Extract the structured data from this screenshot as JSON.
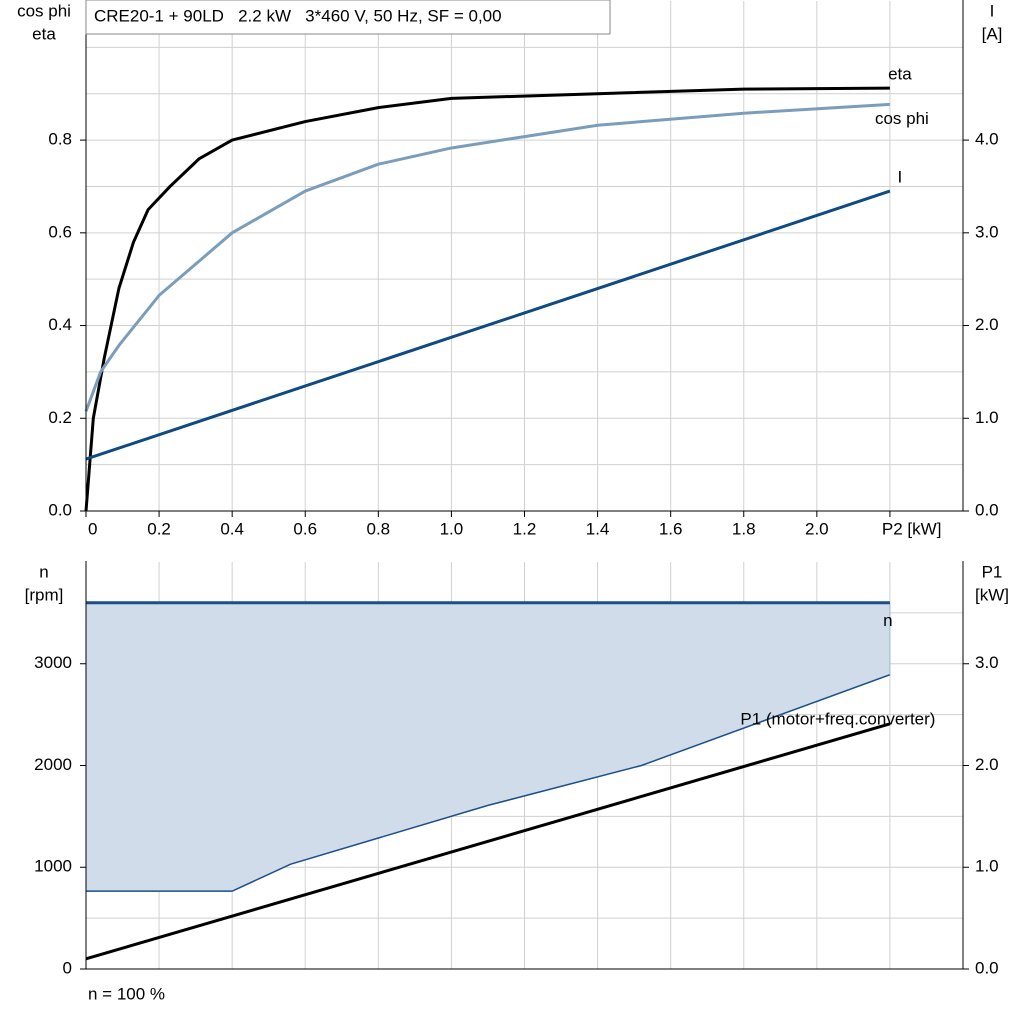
{
  "chart_data": [
    {
      "type": "line",
      "title": "CRE20-1 + 90LD   2.2 kW   3*460 V, 50 Hz, SF = 0,00",
      "ylabel": [
        "cos phi",
        "eta"
      ],
      "y2label": [
        "I",
        "[A]"
      ],
      "xlim": [
        0,
        2.4
      ],
      "xticks": [
        0,
        0.2,
        0.4,
        0.6,
        0.8,
        {
          "value": 1.0,
          "label": "1.0"
        },
        1.2,
        1.4,
        1.6,
        1.8,
        {
          "value": 2.0,
          "label": "2.0"
        },
        {
          "value": 2.2,
          "label": "P2 [kW]"
        }
      ],
      "ylim": [
        0,
        1.1
      ],
      "yticks": [
        {
          "value": 0,
          "label": "0.0"
        },
        0.2,
        0.4,
        0.6,
        0.8
      ],
      "yminorticks": [
        0.1,
        0.3,
        0.5,
        0.7,
        0.9,
        1.0
      ],
      "y2lim": [
        0,
        5.5
      ],
      "y2ticks": [
        {
          "value": 0,
          "label": "0.0"
        },
        {
          "value": 1,
          "label": "1.0"
        },
        {
          "value": 2,
          "label": "2.0"
        },
        {
          "value": 3,
          "label": "3.0"
        },
        {
          "value": 4,
          "label": "4.0"
        }
      ],
      "grid": true,
      "series": [
        {
          "name": "eta",
          "color": "#000000",
          "x": [
            0,
            0.02,
            0.05,
            0.09,
            0.13,
            0.17,
            0.23,
            0.31,
            0.4,
            0.6,
            0.8,
            1.0,
            1.4,
            1.8,
            2.2
          ],
          "values": [
            0,
            0.2,
            0.33,
            0.48,
            0.58,
            0.65,
            0.7,
            0.76,
            0.8,
            0.84,
            0.87,
            0.89,
            0.9,
            0.91,
            0.912
          ]
        },
        {
          "name": "cos phi",
          "color": "#7b9dbc",
          "x": [
            0,
            0.04,
            0.09,
            0.2,
            0.4,
            0.6,
            0.8,
            1.0,
            1.4,
            1.8,
            2.2
          ],
          "values": [
            0.215,
            0.3,
            0.357,
            0.465,
            0.6,
            0.69,
            0.748,
            0.783,
            0.832,
            0.858,
            0.877
          ]
        },
        {
          "name": "I",
          "color": "#0f4a80",
          "axis": "y2",
          "x": [
            0,
            2.2
          ],
          "values": [
            0.56,
            3.45
          ]
        }
      ]
    },
    {
      "type": "line",
      "ylabel": [
        "n",
        "[rpm]"
      ],
      "y2label": [
        "P1",
        "[kW]"
      ],
      "note": "n = 100 %",
      "xlim": [
        0,
        2.4
      ],
      "xgrid": [
        0.2,
        0.4,
        0.6,
        0.8,
        1.0,
        1.2,
        1.4,
        1.6,
        1.8,
        2.0,
        2.2
      ],
      "ylim": [
        0,
        4000
      ],
      "yticks": [
        0,
        1000,
        2000,
        3000
      ],
      "yminorticks": [
        500,
        1500,
        2500,
        3500
      ],
      "y2lim": [
        0,
        4.0
      ],
      "y2ticks": [
        {
          "value": 0,
          "label": "0.0"
        },
        {
          "value": 1,
          "label": "1.0"
        },
        {
          "value": 2,
          "label": "2.0"
        },
        {
          "value": 3,
          "label": "3.0"
        }
      ],
      "grid": true,
      "series": [
        {
          "name": "n",
          "color": "#1b4f8a",
          "fill": "#d0dce9",
          "x": [
            0,
            0.4,
            0.56,
            1.1,
            1.52,
            2.2
          ],
          "values": [
            3600,
            3600,
            3600,
            3600,
            3600,
            3600
          ],
          "lower": [
            765,
            765,
            1030,
            1608,
            2000,
            2892
          ]
        },
        {
          "name": "P1 (motor+freq.converter)",
          "color": "#000000",
          "axis": "y2",
          "x": [
            0,
            2.2
          ],
          "values": [
            0.1,
            2.41
          ]
        }
      ]
    }
  ]
}
